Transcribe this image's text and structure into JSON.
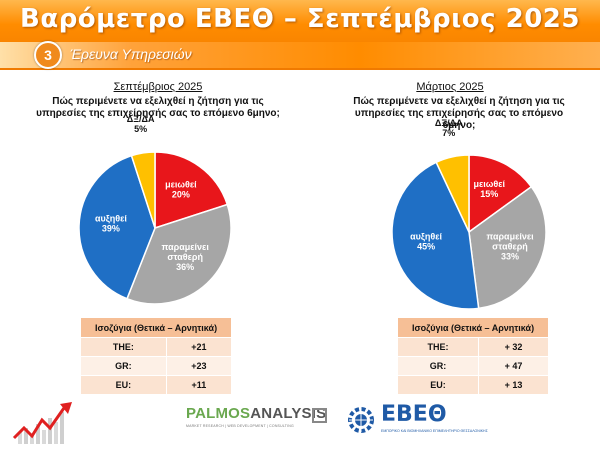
{
  "header": {
    "title": "Βαρόμετρο ΕΒΕΘ – Σεπτέμβριος 2025",
    "section_number": "3",
    "section_title": "Έρευνα Υπηρεσιών"
  },
  "colors": {
    "decrease": "#e8161b",
    "stable": "#a6a6a6",
    "increase": "#1f6fc5",
    "dk_na": "#ffc000"
  },
  "chart_data": [
    {
      "type": "pie",
      "title": "Σεπτέμβριος 2025",
      "question": "Πώς περιμένετε να εξελιχθεί η ζήτηση για τις υπηρεσίες της επιχείρησής σας το επόμενο 6μηνο;",
      "slices": [
        {
          "label": "μειωθεί",
          "value": 20,
          "pct": "20%",
          "color": "#e8161b"
        },
        {
          "label": "παραμείνει σταθερή",
          "value": 36,
          "pct": "36%",
          "color": "#a6a6a6"
        },
        {
          "label": "αυξηθεί",
          "value": 39,
          "pct": "39%",
          "color": "#1f6fc5"
        },
        {
          "label": "ΔΞ/ΔΑ",
          "value": 5,
          "pct": "5%",
          "color": "#ffc000"
        }
      ],
      "balance": {
        "header": "Ισοζύγια (Θετικά – Αρνητικά)",
        "rows": [
          {
            "region": "THE:",
            "value": "+21"
          },
          {
            "region": "GR:",
            "value": "+23"
          },
          {
            "region": "EU:",
            "value": "+11"
          }
        ]
      }
    },
    {
      "type": "pie",
      "title": "Μάρτιος 2025",
      "question": "Πώς περιμένετε να εξελιχθεί η ζήτηση για τις υπηρεσίες της επιχείρησής σας το επόμενο 6μηνο;",
      "slices": [
        {
          "label": "μειωθεί",
          "value": 15,
          "pct": "15%",
          "color": "#e8161b"
        },
        {
          "label": "παραμείνει σταθερή",
          "value": 33,
          "pct": "33%",
          "color": "#a6a6a6"
        },
        {
          "label": "αυξηθεί",
          "value": 45,
          "pct": "45%",
          "color": "#1f6fc5"
        },
        {
          "label": "ΔΞ/ΔΑ",
          "value": 7,
          "pct": "7%",
          "color": "#ffc000"
        }
      ],
      "balance": {
        "header": "Ισοζύγια (Θετικά – Αρνητικά)",
        "rows": [
          {
            "region": "THE:",
            "value": "+ 32"
          },
          {
            "region": "GR:",
            "value": "+ 47"
          },
          {
            "region": "EU:",
            "value": "+ 13"
          }
        ]
      }
    }
  ],
  "footer": {
    "palmos_brand_a": "PALMOS",
    "palmos_brand_b": "ANALYSIS",
    "palmos_tagline": "MARKET RESEARCH | WEB DEVELOPMENT | CONSULTING",
    "ebeo_name": "ΕΒΕΘ",
    "ebeo_tagline": "ΕΜΠΟΡΙΚΟ ΚΑΙ ΒΙΟΜΗΧΑΝΙΚΟ ΕΠΙΜΕΛΗΤΗΡΙΟ ΘΕΣΣΑΛΟΝΙΚΗΣ"
  }
}
